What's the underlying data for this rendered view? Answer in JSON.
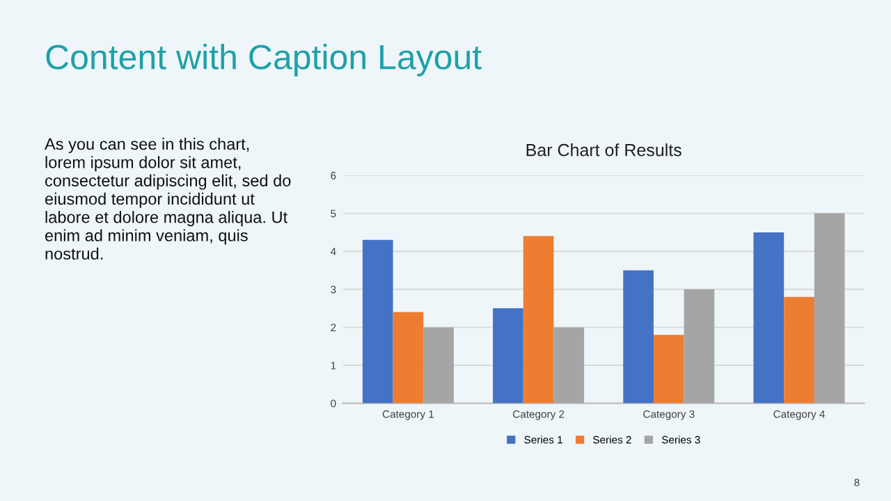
{
  "chart_data": {
    "type": "bar",
    "title": "Bar Chart of Results",
    "annotations": [
      "Content with Caption Layout",
      "As you can see in this chart,\nlorem ipsum dolor sit amet,\nconsectetur adipiscing elit, sed do\neiusmod tempor incididunt ut\nlabore et dolore magna aliqua. Ut\nenim ad minim veniam, quis\nnostrud.",
      "8"
    ],
    "categories": [
      "Category 1",
      "Category 2",
      "Category 3",
      "Category 4"
    ],
    "series": [
      {
        "name": "Series 1",
        "color": "#4472c4",
        "values": [
          4.3,
          2.5,
          3.5,
          4.5
        ]
      },
      {
        "name": "Series 2",
        "color": "#ed7d31",
        "values": [
          2.4,
          4.4,
          1.8,
          2.8
        ]
      },
      {
        "name": "Series 3",
        "color": "#a5a5a5",
        "values": [
          2,
          2,
          3,
          5
        ]
      }
    ],
    "ylim": [
      0,
      6
    ],
    "yticks": [
      0,
      1,
      2,
      3,
      4,
      5,
      6
    ],
    "grid": "y",
    "legend": "bottom"
  }
}
